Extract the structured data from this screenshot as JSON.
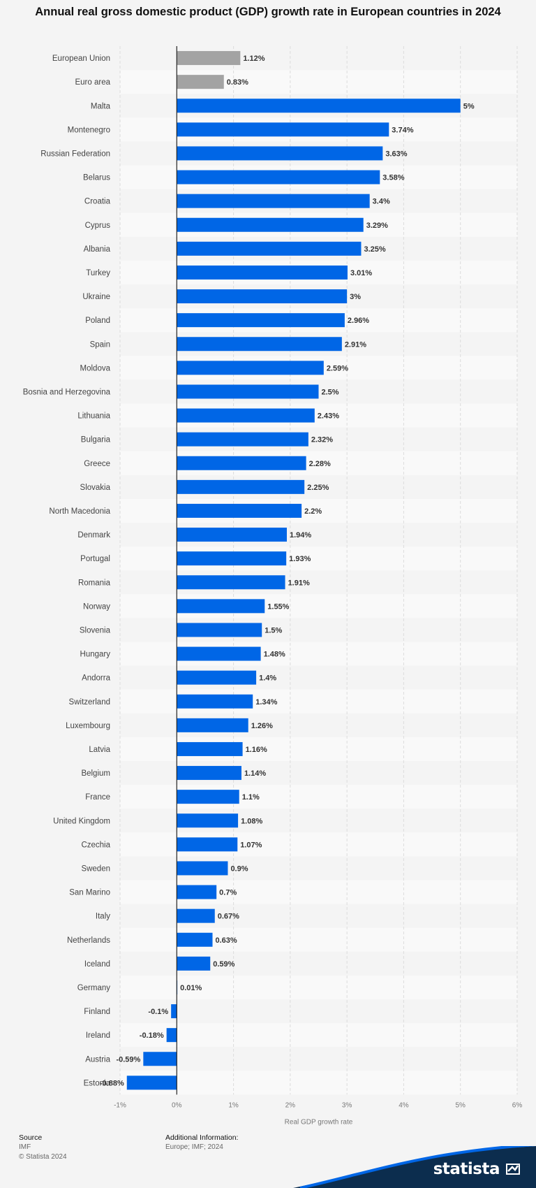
{
  "chart_data": {
    "type": "bar",
    "orientation": "horizontal",
    "title": "Annual real gross domestic product (GDP) growth rate in European countries in 2024",
    "xlabel": "Real GDP growth rate",
    "xlim": [
      -1,
      6
    ],
    "xticks": [
      "-1%",
      "0%",
      "1%",
      "2%",
      "3%",
      "4%",
      "5%",
      "6%"
    ],
    "grid": true,
    "categories": [
      "European Union",
      "Euro area",
      "Malta",
      "Montenegro",
      "Russian Federation",
      "Belarus",
      "Croatia",
      "Cyprus",
      "Albania",
      "Turkey",
      "Ukraine",
      "Poland",
      "Spain",
      "Moldova",
      "Bosnia and Herzegovina",
      "Lithuania",
      "Bulgaria",
      "Greece",
      "Slovakia",
      "North Macedonia",
      "Denmark",
      "Portugal",
      "Romania",
      "Norway",
      "Slovenia",
      "Hungary",
      "Andorra",
      "Switzerland",
      "Luxembourg",
      "Latvia",
      "Belgium",
      "France",
      "United Kingdom",
      "Czechia",
      "Sweden",
      "San Marino",
      "Italy",
      "Netherlands",
      "Iceland",
      "Germany",
      "Finland",
      "Ireland",
      "Austria",
      "Estonia"
    ],
    "values": [
      1.12,
      0.83,
      5,
      3.74,
      3.63,
      3.58,
      3.4,
      3.29,
      3.25,
      3.01,
      3,
      2.96,
      2.91,
      2.59,
      2.5,
      2.43,
      2.32,
      2.28,
      2.25,
      2.2,
      1.94,
      1.93,
      1.91,
      1.55,
      1.5,
      1.48,
      1.4,
      1.34,
      1.26,
      1.16,
      1.14,
      1.1,
      1.08,
      1.07,
      0.9,
      0.7,
      0.67,
      0.63,
      0.59,
      0.01,
      -0.1,
      -0.18,
      -0.59,
      -0.88
    ],
    "data_labels": [
      "1.12%",
      "0.83%",
      "5%",
      "3.74%",
      "3.63%",
      "3.58%",
      "3.4%",
      "3.29%",
      "3.25%",
      "3.01%",
      "3%",
      "2.96%",
      "2.91%",
      "2.59%",
      "2.5%",
      "2.43%",
      "2.32%",
      "2.28%",
      "2.25%",
      "2.2%",
      "1.94%",
      "1.93%",
      "1.91%",
      "1.55%",
      "1.5%",
      "1.48%",
      "1.4%",
      "1.34%",
      "1.26%",
      "1.16%",
      "1.14%",
      "1.1%",
      "1.08%",
      "1.07%",
      "0.9%",
      "0.7%",
      "0.67%",
      "0.63%",
      "0.59%",
      "0.01%",
      "-0.1%",
      "-0.18%",
      "-0.59%",
      "-0.88%"
    ],
    "highlight_categories": [
      "European Union",
      "Euro area"
    ]
  },
  "colors": {
    "bar": "#0066e6",
    "bar_aggregate": "#a3a3a3",
    "stripe": "#f9f9f9",
    "grid": "#dcdcdc",
    "brand_wave": "#0c2d4e"
  },
  "footer": {
    "source_heading": "Source",
    "source_lines": [
      "IMF",
      "© Statista 2024"
    ],
    "info_heading": "Additional Information:",
    "info_lines": [
      "Europe; IMF; 2024"
    ]
  },
  "brand": {
    "name": "statista"
  }
}
